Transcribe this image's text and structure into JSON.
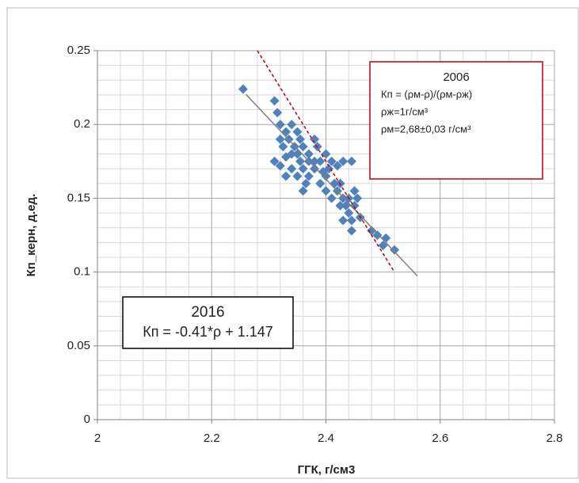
{
  "chart_data": {
    "type": "scatter",
    "x_label": "ГГК, г/см3",
    "y_label": "Кп_керн, д.ед.",
    "xlim": [
      2,
      2.8
    ],
    "ylim": [
      0,
      0.25
    ],
    "xticks": [
      2,
      2.2,
      2.4,
      2.6,
      2.8
    ],
    "yticks": [
      0,
      0.05,
      0.1,
      0.15,
      0.2,
      0.25
    ],
    "x_minor_grid": [
      2.04,
      2.08,
      2.12,
      2.16,
      2.24,
      2.28,
      2.32,
      2.36,
      2.44,
      2.48,
      2.52,
      2.56,
      2.64,
      2.68,
      2.72,
      2.76
    ],
    "y_minor_grid": [
      0.01,
      0.02,
      0.03,
      0.04,
      0.06,
      0.07,
      0.08,
      0.09,
      0.11,
      0.12,
      0.13,
      0.14,
      0.16,
      0.17,
      0.18,
      0.19,
      0.21,
      0.22,
      0.23,
      0.24
    ],
    "grid": true,
    "series": [
      {
        "color": "#4f81bd",
        "x": [
          2.255,
          2.31,
          2.315,
          2.32,
          2.34,
          2.35,
          2.31,
          2.32,
          2.33,
          2.325,
          2.335,
          2.345,
          2.35,
          2.355,
          2.36,
          2.34,
          2.33,
          2.36,
          2.37,
          2.38,
          2.385,
          2.39,
          2.38,
          2.37,
          2.39,
          2.4,
          2.405,
          2.41,
          2.42,
          2.43,
          2.445,
          2.4,
          2.41,
          2.42,
          2.425,
          2.43,
          2.435,
          2.44,
          2.445,
          2.43,
          2.445,
          2.45,
          2.455,
          2.45,
          2.46,
          2.48,
          2.49,
          2.5,
          2.505,
          2.52,
          2.36,
          2.35,
          2.32,
          2.34,
          2.37,
          2.395,
          2.415,
          2.425,
          2.44,
          2.33,
          2.355,
          2.4,
          2.38,
          2.365
        ],
        "values": [
          0.224,
          0.216,
          0.208,
          0.2,
          0.2,
          0.195,
          0.175,
          0.172,
          0.178,
          0.185,
          0.19,
          0.185,
          0.18,
          0.175,
          0.17,
          0.17,
          0.165,
          0.185,
          0.18,
          0.19,
          0.185,
          0.175,
          0.17,
          0.165,
          0.16,
          0.165,
          0.17,
          0.175,
          0.172,
          0.175,
          0.175,
          0.155,
          0.15,
          0.155,
          0.16,
          0.15,
          0.145,
          0.14,
          0.135,
          0.135,
          0.128,
          0.145,
          0.15,
          0.155,
          0.137,
          0.128,
          0.125,
          0.118,
          0.123,
          0.115,
          0.155,
          0.165,
          0.19,
          0.18,
          0.175,
          0.168,
          0.16,
          0.145,
          0.15,
          0.195,
          0.19,
          0.18,
          0.175,
          0.16
        ]
      }
    ],
    "lines": [
      {
        "color": "#808080",
        "dashed": false,
        "x": [
          2.26,
          2.56
        ],
        "values": [
          0.2204,
          0.0974
        ]
      },
      {
        "color": "#c00000",
        "dashed": true,
        "x": [
          2.28,
          2.52
        ],
        "values": [
          0.25,
          0.1
        ]
      }
    ],
    "annotations": [
      {
        "lines": [
          "2006",
          "Кп = (ρм-ρ)/(ρм-ρж)",
          "ρж=1г/см³",
          "ρм=2,68±0,03 г/см³"
        ],
        "border": "#c00000"
      },
      {
        "lines": [
          "2016",
          "Кп = -0.41*ρ + 1.147"
        ],
        "border": "#000000"
      }
    ]
  }
}
